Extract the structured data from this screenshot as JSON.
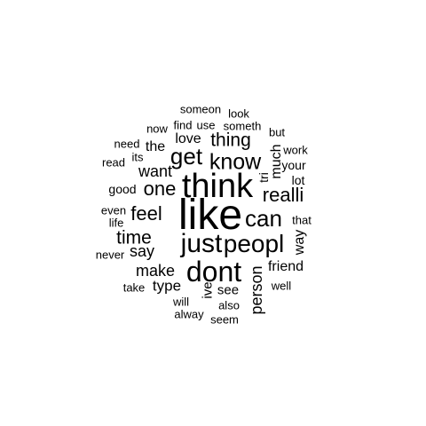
{
  "colors": {
    "background": "#ffffff",
    "text": "#000000"
  },
  "words": [
    {
      "text": "like"
    },
    {
      "text": "think"
    },
    {
      "text": "dont"
    },
    {
      "text": "just"
    },
    {
      "text": "peopl"
    },
    {
      "text": "can"
    },
    {
      "text": "know"
    },
    {
      "text": "get"
    },
    {
      "text": "realli"
    },
    {
      "text": "one"
    },
    {
      "text": "feel"
    },
    {
      "text": "thing"
    },
    {
      "text": "time"
    },
    {
      "text": "want"
    },
    {
      "text": "make"
    },
    {
      "text": "say"
    },
    {
      "text": "type"
    },
    {
      "text": "friend"
    },
    {
      "text": "person"
    },
    {
      "text": "love"
    },
    {
      "text": "see"
    },
    {
      "text": "the"
    },
    {
      "text": "way"
    },
    {
      "text": "much"
    },
    {
      "text": "ive"
    },
    {
      "text": "tri"
    },
    {
      "text": "your"
    },
    {
      "text": "lot"
    },
    {
      "text": "good"
    },
    {
      "text": "that"
    },
    {
      "text": "someon"
    },
    {
      "text": "look"
    },
    {
      "text": "now"
    },
    {
      "text": "find"
    },
    {
      "text": "use"
    },
    {
      "text": "someth"
    },
    {
      "text": "but"
    },
    {
      "text": "need"
    },
    {
      "text": "work"
    },
    {
      "text": "read"
    },
    {
      "text": "its"
    },
    {
      "text": "even"
    },
    {
      "text": "life"
    },
    {
      "text": "never"
    },
    {
      "text": "take"
    },
    {
      "text": "will"
    },
    {
      "text": "also"
    },
    {
      "text": "well"
    },
    {
      "text": "alway"
    },
    {
      "text": "seem"
    }
  ]
}
